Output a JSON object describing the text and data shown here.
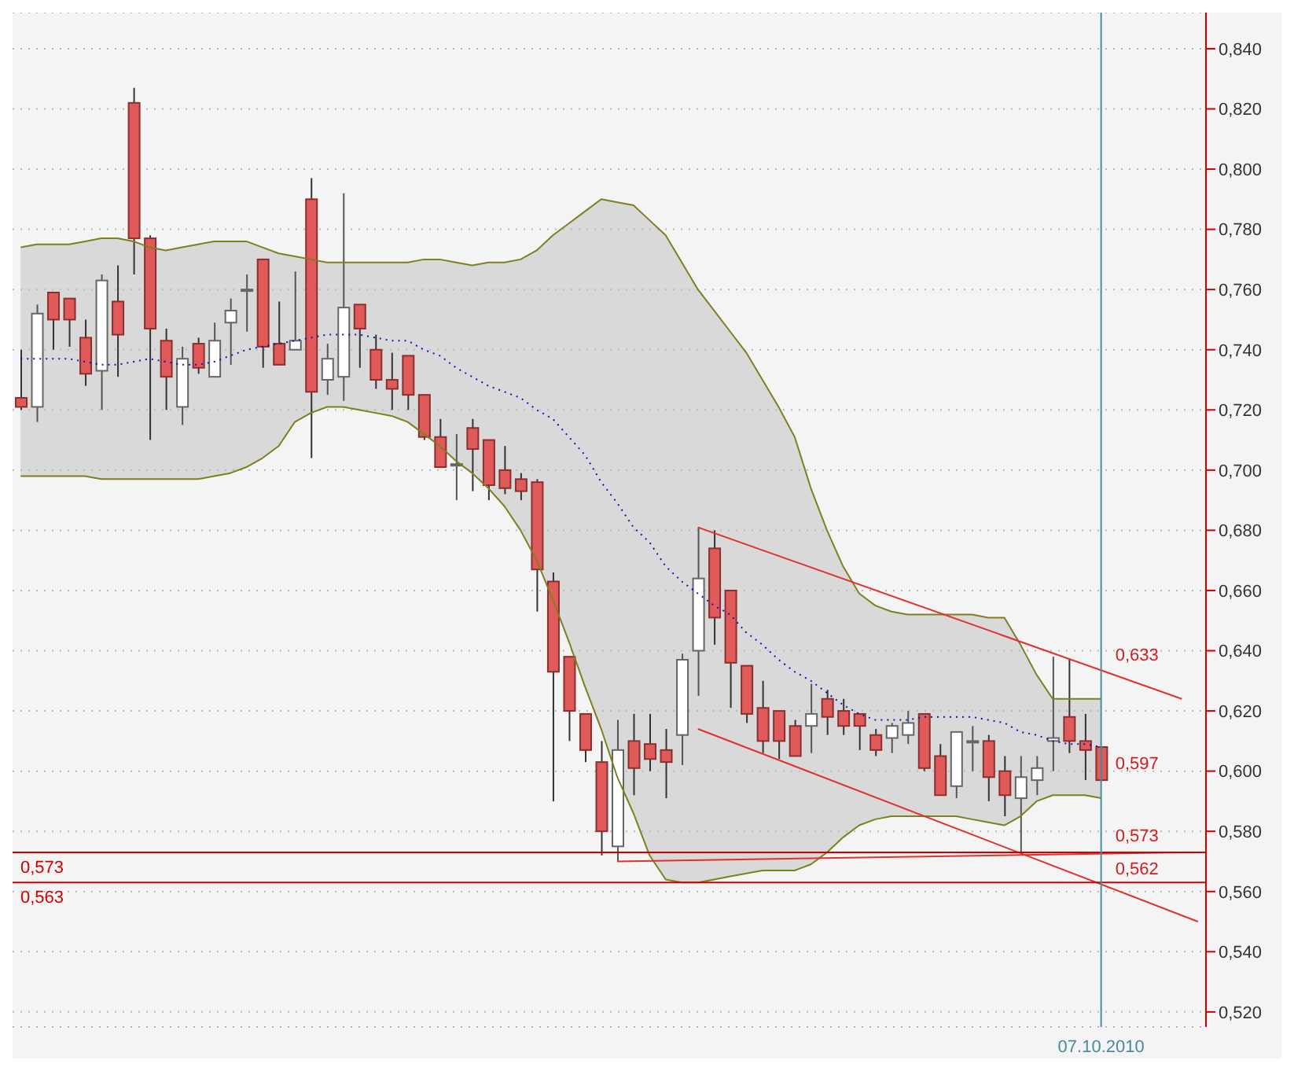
{
  "chart_data": {
    "type": "candlestick",
    "categories": [
      null,
      null,
      null,
      null,
      null,
      null,
      null,
      null,
      null,
      null,
      null,
      null,
      null,
      null,
      null,
      null,
      null,
      null,
      null,
      null,
      null,
      null,
      null,
      null,
      null,
      null,
      null,
      null,
      null,
      null,
      null,
      null,
      null,
      null,
      null,
      null,
      null,
      null,
      null,
      null,
      null,
      null,
      null,
      null,
      null,
      null,
      null,
      null,
      null,
      null,
      null,
      null,
      null,
      null,
      null,
      null,
      null,
      null,
      null,
      null,
      null,
      null,
      null,
      null,
      null,
      null,
      null,
      "07.10.2010",
      null,
      null,
      null,
      null,
      null,
      null
    ],
    "ohlc": [
      [
        0.724,
        0.74,
        0.72,
        0.721
      ],
      [
        0.721,
        0.755,
        0.716,
        0.752
      ],
      [
        0.759,
        0.759,
        0.74,
        0.75
      ],
      [
        0.757,
        0.757,
        0.741,
        0.75
      ],
      [
        0.744,
        0.75,
        0.728,
        0.732
      ],
      [
        0.733,
        0.765,
        0.72,
        0.763
      ],
      [
        0.756,
        0.768,
        0.731,
        0.745
      ],
      [
        0.822,
        0.827,
        0.765,
        0.777
      ],
      [
        0.777,
        0.778,
        0.71,
        0.747
      ],
      [
        0.743,
        0.747,
        0.72,
        0.731
      ],
      [
        0.721,
        0.741,
        0.715,
        0.737
      ],
      [
        0.742,
        0.744,
        0.732,
        0.734
      ],
      [
        0.731,
        0.749,
        0.731,
        0.743
      ],
      [
        0.749,
        0.757,
        0.735,
        0.753
      ],
      [
        0.76,
        0.765,
        0.746,
        0.76
      ],
      [
        0.77,
        0.77,
        0.734,
        0.741
      ],
      [
        0.742,
        0.756,
        0.735,
        0.735
      ],
      [
        0.74,
        0.766,
        0.74,
        0.743
      ],
      [
        0.79,
        0.797,
        0.704,
        0.726
      ],
      [
        0.73,
        0.742,
        0.725,
        0.737
      ],
      [
        0.731,
        0.792,
        0.723,
        0.754
      ],
      [
        0.755,
        0.755,
        0.734,
        0.747
      ],
      [
        0.74,
        0.745,
        0.727,
        0.73
      ],
      [
        0.73,
        0.739,
        0.72,
        0.727
      ],
      [
        0.738,
        0.738,
        0.72,
        0.725
      ],
      [
        0.725,
        0.725,
        0.71,
        0.711
      ],
      [
        0.711,
        0.717,
        0.701,
        0.701
      ],
      [
        0.702,
        0.712,
        0.69,
        0.702
      ],
      [
        0.714,
        0.717,
        0.693,
        0.707
      ],
      [
        0.71,
        0.71,
        0.69,
        0.695
      ],
      [
        0.7,
        0.708,
        0.692,
        0.694
      ],
      [
        0.697,
        0.699,
        0.69,
        0.693
      ],
      [
        0.696,
        0.697,
        0.653,
        0.667
      ],
      [
        0.663,
        0.666,
        0.59,
        0.633
      ],
      [
        0.638,
        0.638,
        0.61,
        0.62
      ],
      [
        0.619,
        0.619,
        0.603,
        0.607
      ],
      [
        0.603,
        0.61,
        0.572,
        0.58
      ],
      [
        0.575,
        0.617,
        0.57,
        0.607
      ],
      [
        0.61,
        0.619,
        0.592,
        0.601
      ],
      [
        0.609,
        0.619,
        0.6,
        0.604
      ],
      [
        0.607,
        0.614,
        0.591,
        0.603
      ],
      [
        0.612,
        0.639,
        0.602,
        0.637
      ],
      [
        0.64,
        0.681,
        0.625,
        0.664
      ],
      [
        0.674,
        0.68,
        0.642,
        0.651
      ],
      [
        0.66,
        0.66,
        0.621,
        0.636
      ],
      [
        0.635,
        0.635,
        0.616,
        0.619
      ],
      [
        0.621,
        0.63,
        0.606,
        0.61
      ],
      [
        0.62,
        0.62,
        0.604,
        0.61
      ],
      [
        0.615,
        0.617,
        0.605,
        0.605
      ],
      [
        0.615,
        0.629,
        0.606,
        0.619
      ],
      [
        0.624,
        0.627,
        0.612,
        0.618
      ],
      [
        0.62,
        0.624,
        0.612,
        0.615
      ],
      [
        0.619,
        0.619,
        0.607,
        0.615
      ],
      [
        0.612,
        0.614,
        0.605,
        0.607
      ],
      [
        0.611,
        0.616,
        0.606,
        0.615
      ],
      [
        0.612,
        0.62,
        0.609,
        0.616
      ],
      [
        0.619,
        0.619,
        0.6,
        0.601
      ],
      [
        0.605,
        0.609,
        0.592,
        0.592
      ],
      [
        0.595,
        0.613,
        0.591,
        0.613
      ],
      [
        0.61,
        0.615,
        0.6,
        0.61
      ],
      [
        0.61,
        0.612,
        0.59,
        0.598
      ],
      [
        0.6,
        0.605,
        0.585,
        0.592
      ],
      [
        0.591,
        0.605,
        0.573,
        0.598
      ],
      [
        0.597,
        0.605,
        0.592,
        0.601
      ],
      [
        0.61,
        0.638,
        0.6,
        0.611
      ],
      [
        0.618,
        0.637,
        0.606,
        0.61
      ],
      [
        0.61,
        0.619,
        0.597,
        0.607
      ],
      [
        0.608,
        0.608,
        0.597,
        0.597
      ],
      null,
      null,
      null,
      null,
      null,
      null
    ],
    "series": [
      {
        "type": "line",
        "color": "#1010c0",
        "line_style": "dotted",
        "values": [
          0.737,
          0.737,
          0.737,
          0.737,
          0.736,
          0.735,
          0.735,
          0.736,
          0.737,
          0.736,
          0.735,
          0.735,
          0.736,
          0.738,
          0.74,
          0.741,
          0.742,
          0.743,
          0.744,
          0.745,
          0.745,
          0.745,
          0.744,
          0.743,
          0.743,
          0.74,
          0.738,
          0.734,
          0.731,
          0.728,
          0.726,
          0.724,
          0.72,
          0.717,
          0.711,
          0.705,
          0.696,
          0.689,
          0.681,
          0.676,
          0.668,
          0.663,
          0.659,
          0.655,
          0.652,
          0.646,
          0.642,
          0.637,
          0.633,
          0.63,
          0.626,
          0.622,
          0.619,
          0.617,
          0.617,
          0.617,
          0.618,
          0.618,
          0.618,
          0.618,
          0.617,
          0.616,
          0.613,
          0.612,
          0.61,
          0.609,
          0.609,
          0.608,
          null,
          null,
          null,
          null,
          null,
          null
        ],
        "lower": [
          0.698,
          0.698,
          0.698,
          0.698,
          0.698,
          0.697,
          0.697,
          0.697,
          0.697,
          0.697,
          0.697,
          0.697,
          0.698,
          0.699,
          0.701,
          0.704,
          0.708,
          0.716,
          0.719,
          0.721,
          0.721,
          0.72,
          0.719,
          0.718,
          0.716,
          0.712,
          0.708,
          0.703,
          0.699,
          0.694,
          0.688,
          0.68,
          0.67,
          0.657,
          0.643,
          0.628,
          0.614,
          0.598,
          0.586,
          0.572,
          0.564,
          0.563,
          0.563,
          0.564,
          0.565,
          0.566,
          0.567,
          0.567,
          0.567,
          0.569,
          0.573,
          0.578,
          0.582,
          0.584,
          0.585,
          0.585,
          0.585,
          0.585,
          0.585,
          0.584,
          0.583,
          0.582,
          0.585,
          0.59,
          0.592,
          0.592,
          0.592,
          0.591,
          null,
          null,
          null,
          null,
          null,
          null
        ],
        "upper": [
          0.774,
          0.775,
          0.775,
          0.775,
          0.776,
          0.777,
          0.777,
          0.776,
          0.774,
          0.773,
          0.774,
          0.775,
          0.776,
          0.776,
          0.776,
          0.774,
          0.772,
          0.771,
          0.77,
          0.769,
          0.769,
          0.769,
          0.769,
          0.769,
          0.769,
          0.77,
          0.77,
          0.769,
          0.768,
          0.769,
          0.769,
          0.77,
          0.773,
          0.778,
          0.782,
          0.786,
          0.79,
          0.789,
          0.788,
          0.783,
          0.778,
          0.769,
          0.76,
          0.753,
          0.746,
          0.739,
          0.73,
          0.721,
          0.711,
          0.694,
          0.68,
          0.668,
          0.659,
          0.655,
          0.653,
          0.652,
          0.652,
          0.652,
          0.652,
          0.652,
          0.651,
          0.651,
          0.642,
          0.632,
          0.624,
          0.624,
          0.624,
          0.624,
          null,
          null,
          null,
          null,
          null,
          null
        ]
      },
      {
        "type": "line",
        "color": "#7f7f20",
        "values": [
          0.774,
          0.775,
          0.775,
          0.775,
          0.776,
          0.777,
          0.777,
          0.776,
          0.774,
          0.773,
          0.774,
          0.775,
          0.776,
          0.776,
          0.776,
          0.774,
          0.772,
          0.771,
          0.77,
          0.769,
          0.769,
          0.769,
          0.769,
          0.769,
          0.769,
          0.77,
          0.77,
          0.769,
          0.768,
          0.769,
          0.769,
          0.77,
          0.773,
          0.778,
          0.782,
          0.786,
          0.79,
          0.789,
          0.788,
          0.783,
          0.778,
          0.769,
          0.76,
          0.753,
          0.746,
          0.739,
          0.73,
          0.721,
          0.711,
          0.694,
          0.68,
          0.668,
          0.659,
          0.655,
          0.653,
          0.652,
          0.652,
          0.652,
          0.652,
          0.652,
          0.651,
          0.651,
          0.642,
          0.632,
          0.624,
          0.624,
          0.624,
          0.624,
          null,
          null,
          null,
          null,
          null,
          null
        ]
      },
      {
        "type": "line",
        "color": "#7f7f20",
        "values": [
          0.698,
          0.698,
          0.698,
          0.698,
          0.698,
          0.697,
          0.697,
          0.697,
          0.697,
          0.697,
          0.697,
          0.697,
          0.698,
          0.699,
          0.701,
          0.704,
          0.708,
          0.716,
          0.719,
          0.721,
          0.721,
          0.72,
          0.719,
          0.718,
          0.716,
          0.712,
          0.708,
          0.703,
          0.699,
          0.694,
          0.688,
          0.68,
          0.67,
          0.657,
          0.643,
          0.628,
          0.614,
          0.598,
          0.586,
          0.572,
          0.564,
          0.563,
          0.563,
          0.564,
          0.565,
          0.566,
          0.567,
          0.567,
          0.567,
          0.569,
          0.573,
          0.578,
          0.582,
          0.584,
          0.585,
          0.585,
          0.585,
          0.585,
          0.585,
          0.584,
          0.583,
          0.582,
          0.585,
          0.59,
          0.592,
          0.592,
          0.592,
          0.591,
          null,
          null,
          null,
          null,
          null,
          null
        ]
      },
      {
        "type": "line",
        "color": "#e03030",
        "values": [
          null,
          null,
          null,
          null,
          null,
          null,
          null,
          null,
          null,
          null,
          null,
          null,
          null,
          null,
          null,
          null,
          null,
          null,
          null,
          null,
          null,
          null,
          null,
          null,
          null,
          null,
          null,
          null,
          null,
          null,
          null,
          null,
          null,
          null,
          null,
          null,
          null,
          null,
          null,
          null,
          null,
          null,
          0.681,
          null,
          null,
          null,
          null,
          null,
          null,
          null,
          null,
          null,
          null,
          null,
          null,
          null,
          null,
          null,
          null,
          null,
          null,
          null,
          null,
          null,
          null,
          null,
          null,
          null,
          null,
          null,
          null,
          null,
          0.624,
          null
        ]
      },
      {
        "type": "line",
        "color": "#e03030",
        "values": [
          null,
          null,
          null,
          null,
          null,
          null,
          null,
          null,
          null,
          null,
          null,
          null,
          null,
          null,
          null,
          null,
          null,
          null,
          null,
          null,
          null,
          null,
          null,
          null,
          null,
          null,
          null,
          null,
          null,
          null,
          null,
          null,
          null,
          null,
          null,
          null,
          null,
          null,
          null,
          null,
          null,
          null,
          0.614,
          null,
          null,
          null,
          null,
          null,
          null,
          null,
          null,
          null,
          null,
          null,
          null,
          null,
          null,
          null,
          null,
          null,
          null,
          null,
          null,
          null,
          null,
          null,
          null,
          null,
          null,
          null,
          null,
          null,
          null,
          0.55
        ]
      },
      {
        "type": "line",
        "color": "#e03030",
        "values": [
          null,
          null,
          null,
          null,
          null,
          null,
          null,
          null,
          null,
          null,
          null,
          null,
          null,
          null,
          null,
          null,
          null,
          null,
          null,
          null,
          null,
          null,
          null,
          null,
          null,
          null,
          null,
          null,
          null,
          null,
          null,
          null,
          null,
          null,
          null,
          null,
          null,
          0.57,
          null,
          null,
          null,
          null,
          null,
          null,
          null,
          null,
          null,
          null,
          null,
          null,
          null,
          null,
          null,
          null,
          null,
          null,
          null,
          null,
          null,
          null,
          null,
          null,
          null,
          null,
          null,
          null,
          null,
          null,
          null,
          null,
          null,
          null,
          0.573,
          null
        ]
      }
    ],
    "ylim": [
      0.515,
      0.852
    ],
    "yticks": [
      {
        "value": 0.52,
        "label": "0,520"
      },
      {
        "value": 0.54,
        "label": "0,540"
      },
      {
        "value": 0.56,
        "label": "0,560"
      },
      {
        "value": 0.58,
        "label": "0,580"
      },
      {
        "value": 0.6,
        "label": "0,600"
      },
      {
        "value": 0.62,
        "label": "0,620"
      },
      {
        "value": 0.64,
        "label": "0,640"
      },
      {
        "value": 0.66,
        "label": "0,660"
      },
      {
        "value": 0.68,
        "label": "0,680"
      },
      {
        "value": 0.7,
        "label": "0,700"
      },
      {
        "value": 0.72,
        "label": "0,720"
      },
      {
        "value": 0.74,
        "label": "0,740"
      },
      {
        "value": 0.76,
        "label": "0,760"
      },
      {
        "value": 0.78,
        "label": "0,780"
      },
      {
        "value": 0.8,
        "label": "0,800"
      },
      {
        "value": 0.82,
        "label": "0,820"
      },
      {
        "value": 0.84,
        "label": "0,840"
      }
    ],
    "ref_lines": [
      {
        "axis": "y",
        "value": 0.573,
        "label": "0,573",
        "color": "#d00000"
      },
      {
        "axis": "y",
        "value": 0.563,
        "label": "0,563",
        "color": "#d00000"
      },
      {
        "axis": "x",
        "value": "07.10.2010",
        "color": "#4a8c9c"
      }
    ],
    "annotations": [
      {
        "text": "0,633",
        "x": "07.10.2010",
        "y": 0.633
      },
      {
        "text": "0,573",
        "x": "07.10.2010",
        "y": 0.573
      },
      {
        "text": "0,562",
        "x": "07.10.2010",
        "y": 0.562
      },
      {
        "text": "0,597",
        "x": "07.10.2010",
        "y": 0.597
      }
    ],
    "grid": "y"
  }
}
